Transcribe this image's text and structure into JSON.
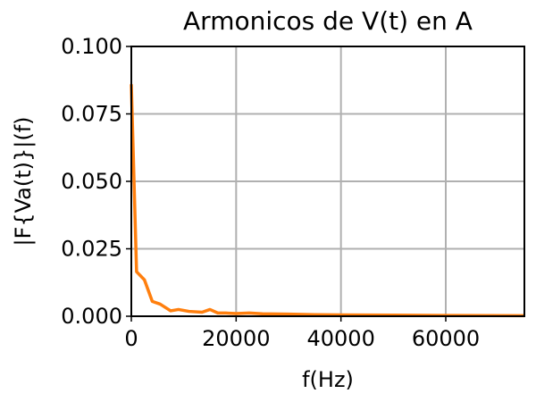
{
  "chart_data": {
    "type": "line",
    "title": "Armonicos de V(t) en A",
    "xlabel": "f(Hz)",
    "ylabel": "|F{Va(t)}|(f)",
    "xlim": [
      0,
      75000
    ],
    "ylim": [
      0,
      0.1
    ],
    "x_ticks": [
      0,
      20000,
      40000,
      60000
    ],
    "x_tick_labels": [
      "0",
      "20000",
      "40000",
      "60000"
    ],
    "y_ticks": [
      0,
      0.025,
      0.05,
      0.075,
      0.1
    ],
    "y_tick_labels": [
      "0.000",
      "0.025",
      "0.050",
      "0.075",
      "0.100"
    ],
    "grid": true,
    "series": [
      {
        "color": "#ff7f0e",
        "x": [
          0,
          1000,
          2500,
          4000,
          5500,
          7500,
          9000,
          11000,
          13500,
          15000,
          16500,
          18000,
          20000,
          22500,
          25000,
          30000,
          35000,
          40000,
          50000,
          60000,
          75000
        ],
        "y": [
          0.086,
          0.0165,
          0.0135,
          0.0055,
          0.0045,
          0.002,
          0.0025,
          0.0018,
          0.0015,
          0.0025,
          0.0012,
          0.0012,
          0.001,
          0.0012,
          0.0009,
          0.0008,
          0.0006,
          0.0005,
          0.0004,
          0.0003,
          0.0002
        ]
      }
    ]
  }
}
